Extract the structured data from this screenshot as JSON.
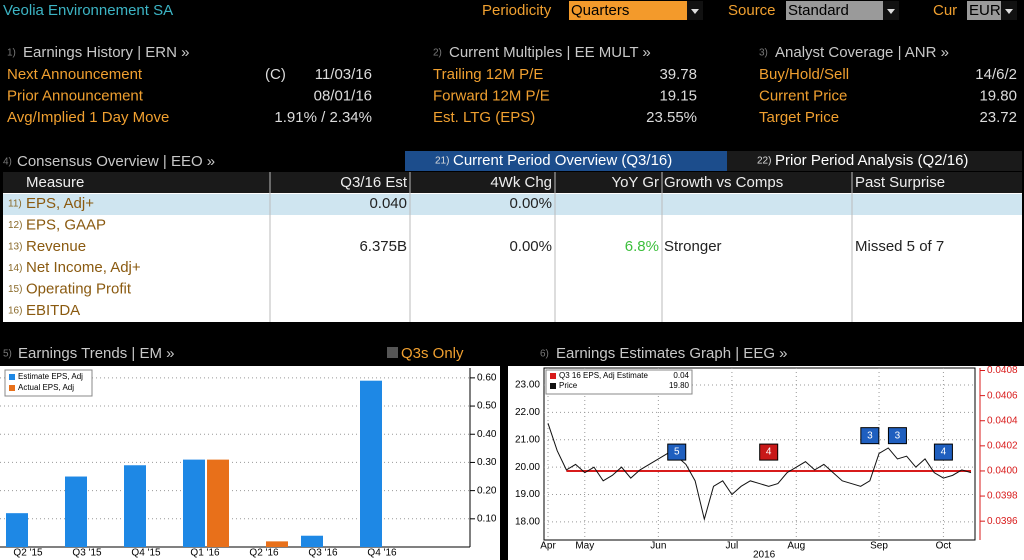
{
  "header": {
    "title": "Veolia Environnement SA",
    "fields": [
      {
        "label": "Periodicity",
        "value": "Quarters"
      },
      {
        "label": "Source",
        "value": "Standard"
      },
      {
        "label": "Cur",
        "value": "EUR"
      }
    ]
  },
  "panels": [
    {
      "num": "1)",
      "title": "Earnings History | ERN »",
      "rows": [
        {
          "label": "Next Announcement",
          "flag": "(C)",
          "value": "11/03/16"
        },
        {
          "label": "Prior Announcement",
          "value": "08/01/16"
        },
        {
          "label": "Avg/Implied 1 Day Move",
          "value": "1.91% / 2.34%"
        }
      ]
    },
    {
      "num": "2)",
      "title": "Current Multiples | EE MULT »",
      "rows": [
        {
          "label": "Trailing 12M P/E",
          "value": "39.78"
        },
        {
          "label": "Forward 12M P/E",
          "value": "19.15"
        },
        {
          "label": "Est. LTG (EPS)",
          "value": "23.55%"
        }
      ]
    },
    {
      "num": "3)",
      "title": "Analyst Coverage | ANR »",
      "rows": [
        {
          "label": "Buy/Hold/Sell",
          "value": "14/6/2"
        },
        {
          "label": "Current Price",
          "value": "19.80"
        },
        {
          "label": "Target Price",
          "value": "23.72"
        }
      ]
    }
  ],
  "consensus": {
    "num": "4)",
    "title": "Consensus Overview | EEO »",
    "tabs": [
      {
        "num": "21)",
        "label": "Current Period Overview (Q3/16)"
      },
      {
        "num": "22)",
        "label": "Prior Period Analysis (Q2/16)"
      }
    ],
    "columns": [
      "Measure",
      "Q3/16 Est",
      "4Wk Chg",
      "YoY Gr",
      "Growth vs Comps",
      "Past Surprise"
    ],
    "rows": [
      {
        "num": "11)",
        "cells": [
          "EPS, Adj+",
          "0.040",
          "0.00%",
          null,
          null,
          null
        ]
      },
      {
        "num": "12)",
        "cells": [
          "EPS, GAAP",
          null,
          null,
          null,
          null,
          null
        ]
      },
      {
        "num": "13)",
        "cells": [
          "Revenue",
          "6.375B",
          "0.00%",
          "6.8%",
          "Stronger",
          "Missed 5 of 7"
        ]
      },
      {
        "num": "14)",
        "cells": [
          "Net Income, Adj+",
          null,
          null,
          null,
          null,
          null
        ]
      },
      {
        "num": "15)",
        "cells": [
          "Operating Profit",
          null,
          null,
          null,
          null,
          null
        ]
      },
      {
        "num": "16)",
        "cells": [
          "EBITDA",
          null,
          null,
          null,
          null,
          null
        ]
      }
    ]
  },
  "trends": {
    "num": "5)",
    "title": "Earnings Trends | EM »",
    "toggle": "Q3s Only",
    "chart": {
      "type": "bar",
      "categories": [
        "Q2 '15",
        "Q3 '15",
        "Q4 '15",
        "Q1 '16",
        "Q2 '16",
        "Q3 '16",
        "Q4 '16"
      ],
      "series": [
        {
          "name": "Estimate EPS, Adj",
          "color": "#1e88e5",
          "values": [
            0.12,
            0.25,
            0.29,
            0.31,
            null,
            0.04,
            0.59
          ]
        },
        {
          "name": "Actual EPS, Adj",
          "color": "#e8701a",
          "values": [
            null,
            null,
            null,
            0.31,
            0.02,
            null,
            null
          ]
        }
      ],
      "ylim": [
        0,
        0.635
      ],
      "yticks": [
        {
          "value": 0.1,
          "label": "0.10"
        },
        {
          "value": 0.2,
          "label": "0.20"
        },
        {
          "value": 0.3,
          "label": "0.30"
        },
        {
          "value": 0.4,
          "label": "0.40"
        },
        {
          "value": 0.5,
          "label": "0.50"
        },
        {
          "value": 0.6,
          "label": "0.60"
        }
      ],
      "grid": true
    }
  },
  "estimates": {
    "num": "6)",
    "title": "Earnings Estimates Graph | EEG »",
    "chart": {
      "type": "line",
      "xlim": [
        0,
        46
      ],
      "xticks": [
        {
          "value": 0,
          "label": "Apr"
        },
        {
          "value": 4,
          "label": "May"
        },
        {
          "value": 12,
          "label": "Jun"
        },
        {
          "value": 20,
          "label": "Jul"
        },
        {
          "value": 27,
          "label": "Aug"
        },
        {
          "value": 36,
          "label": "Sep"
        },
        {
          "value": 43,
          "label": "Oct"
        }
      ],
      "year_label": "2016",
      "series": [
        {
          "name": "Q3 16 EPS, Adj Estimate",
          "legend_value": "0.04",
          "color": "#d81b1b",
          "axis": "y2",
          "x": [
            2,
            46
          ],
          "values": [
            0.04,
            0.04
          ]
        },
        {
          "name": "Price",
          "legend_value": "19.80",
          "color": "#111111",
          "values": [
            21.6,
            20.6,
            19.9,
            20.1,
            19.8,
            20.0,
            19.5,
            19.7,
            20.0,
            19.6,
            19.9,
            20.1,
            20.3,
            20.5,
            20.4,
            20.1,
            19.5,
            18.1,
            19.3,
            19.5,
            19.0,
            19.3,
            19.5,
            19.4,
            19.3,
            19.4,
            19.8,
            20.0,
            20.2,
            19.9,
            20.1,
            19.8,
            19.5,
            19.4,
            19.3,
            19.5,
            20.5,
            20.7,
            20.3,
            20.4,
            20.0,
            20.3,
            19.8,
            19.6,
            19.7,
            19.9,
            19.8
          ]
        }
      ],
      "ylim": [
        17.34,
        23.62
      ],
      "yticks": [
        {
          "value": 18,
          "label": "18.00"
        },
        {
          "value": 19,
          "label": "19.00"
        },
        {
          "value": 20,
          "label": "20.00"
        },
        {
          "value": 21,
          "label": "21.00"
        },
        {
          "value": 22,
          "label": "22.00"
        },
        {
          "value": 23,
          "label": "23.00"
        }
      ],
      "y2lim": [
        0.03945,
        0.04082
      ],
      "y2ticks": [
        {
          "value": 0.0396,
          "label": "0.0396"
        },
        {
          "value": 0.0398,
          "label": "0.0398"
        },
        {
          "value": 0.04,
          "label": "0.0400"
        },
        {
          "value": 0.0402,
          "label": "0.0402"
        },
        {
          "value": 0.0404,
          "label": "0.0404"
        },
        {
          "value": 0.0406,
          "label": "0.0406"
        },
        {
          "value": 0.0408,
          "label": "0.0408"
        }
      ],
      "markers": [
        {
          "x": 14,
          "y": 20.55,
          "label": "5",
          "color": "#1f5fbf"
        },
        {
          "x": 24,
          "y": 20.55,
          "label": "4",
          "color": "#c81818"
        },
        {
          "x": 35,
          "y": 21.15,
          "label": "3",
          "color": "#1f5fbf"
        },
        {
          "x": 38,
          "y": 21.15,
          "label": "3",
          "color": "#1f5fbf"
        },
        {
          "x": 43,
          "y": 20.55,
          "label": "4",
          "color": "#1f5fbf"
        }
      ],
      "grid": true
    }
  }
}
